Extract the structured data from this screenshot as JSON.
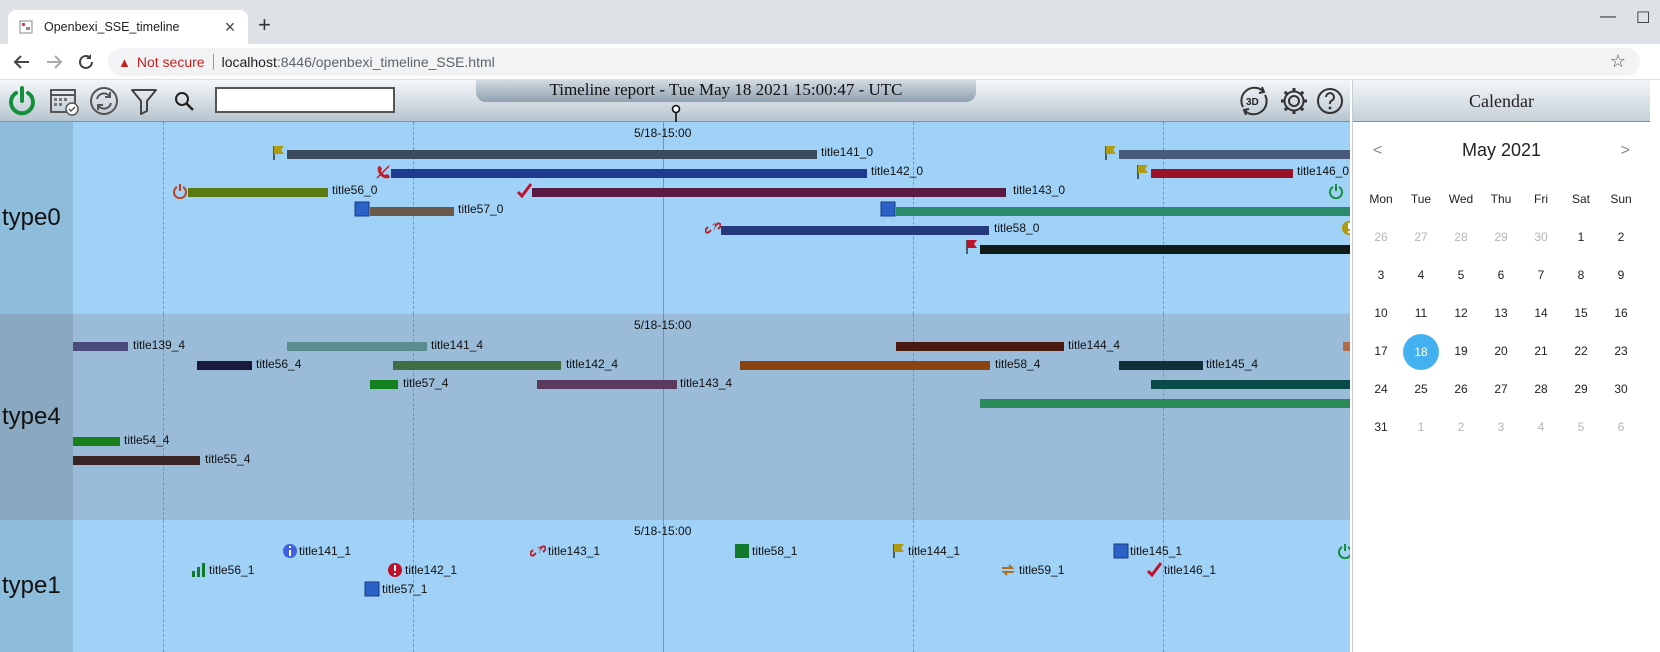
{
  "browser": {
    "tab_title": "Openbexi_SSE_timeline",
    "tab_close": "×",
    "new_tab": "+",
    "security_label": "Not secure",
    "url_host": "localhost",
    "url_path": ":8446/openbexi_timeline_SSE.html",
    "window_minimize": "—",
    "window_maximize": "☐"
  },
  "app": {
    "report_title": "Timeline report - Tue May 18 2021 15:00:47 - UTC",
    "search_value": "",
    "icons": [
      "power-icon",
      "calendar-check-icon",
      "refresh-icon",
      "filter-icon",
      "search-icon",
      "3d-rotate-icon",
      "gear-icon",
      "help-icon"
    ],
    "three_d_label": "3D"
  },
  "calendar": {
    "header": "Calendar",
    "month_label": "May 2021",
    "prev": "<",
    "next": ">",
    "weekdays": [
      "Mon",
      "Tue",
      "Wed",
      "Thu",
      "Fri",
      "Sat",
      "Sun"
    ],
    "weeks": [
      [
        "26",
        "27",
        "28",
        "29",
        "30",
        "1",
        "2"
      ],
      [
        "3",
        "4",
        "5",
        "6",
        "7",
        "8",
        "9"
      ],
      [
        "10",
        "11",
        "12",
        "13",
        "14",
        "15",
        "16"
      ],
      [
        "17",
        "18",
        "19",
        "20",
        "21",
        "22",
        "23"
      ],
      [
        "24",
        "25",
        "26",
        "27",
        "28",
        "29",
        "30"
      ],
      [
        "31",
        "1",
        "2",
        "3",
        "4",
        "5",
        "6"
      ]
    ],
    "selected_day": "18",
    "accent": "#43b1ef"
  },
  "timeline": {
    "now_label": "5/18-15:00",
    "bands": [
      {
        "name": "type0",
        "events": [
          {
            "title": "title141_0",
            "color": "#3b4a5c",
            "icon": "flag-icon"
          },
          {
            "title": "title142_0",
            "color": "#1f3b8f",
            "icon": "phone-off-icon"
          },
          {
            "title": "title56_0",
            "color": "#5a7a12",
            "icon": "power-icon"
          },
          {
            "title": "title143_0",
            "color": "#5b1a44",
            "icon": "check-icon"
          },
          {
            "title": "title57_0",
            "color": "#6b5a4a",
            "icon": "square-icon"
          },
          {
            "title": "title58_0",
            "color": "#243a7a",
            "icon": "broken-link-icon"
          },
          {
            "title": "title146_0",
            "color": "#9b1228",
            "icon": "flag-icon"
          },
          {
            "title": "",
            "color": "#4a5a7c",
            "icon": "flag-icon"
          },
          {
            "title": "",
            "color": "#2a8a6e",
            "icon": "square-icon"
          },
          {
            "title": "",
            "color": "#0e1a16",
            "icon": "red-flag-icon"
          }
        ]
      },
      {
        "name": "type4",
        "events": [
          {
            "title": "title139_4",
            "color": "#4a4a7c"
          },
          {
            "title": "title141_4",
            "color": "#5a8e8e"
          },
          {
            "title": "title144_4",
            "color": "#4a1a10"
          },
          {
            "title": "title56_4",
            "color": "#1a1a3a"
          },
          {
            "title": "title142_4",
            "color": "#3e6e42"
          },
          {
            "title": "title58_4",
            "color": "#8a4412"
          },
          {
            "title": "title145_4",
            "color": "#10303a"
          },
          {
            "title": "title57_4",
            "color": "#14801e"
          },
          {
            "title": "title143_4",
            "color": "#5a3a5e"
          },
          {
            "title": "title54_4",
            "color": "#1a801a"
          },
          {
            "title": "title55_4",
            "color": "#3a2424"
          },
          {
            "title": "",
            "color": "#0a4a4a"
          },
          {
            "title": "",
            "color": "#2a8a5a"
          }
        ]
      },
      {
        "name": "type1",
        "events": [
          {
            "title": "title141_1",
            "icon": "info-icon"
          },
          {
            "title": "title143_1",
            "icon": "broken-link-icon"
          },
          {
            "title": "title58_1",
            "icon": "square-icon"
          },
          {
            "title": "title144_1",
            "icon": "flag-icon"
          },
          {
            "title": "title145_1",
            "icon": "square-icon"
          },
          {
            "title": "title56_1",
            "icon": "bar-chart-icon"
          },
          {
            "title": "title142_1",
            "icon": "alert-icon"
          },
          {
            "title": "title59_1",
            "icon": "swap-icon"
          },
          {
            "title": "title146_1",
            "icon": "check-icon"
          },
          {
            "title": "title57_1",
            "icon": "square-icon"
          }
        ]
      }
    ]
  }
}
